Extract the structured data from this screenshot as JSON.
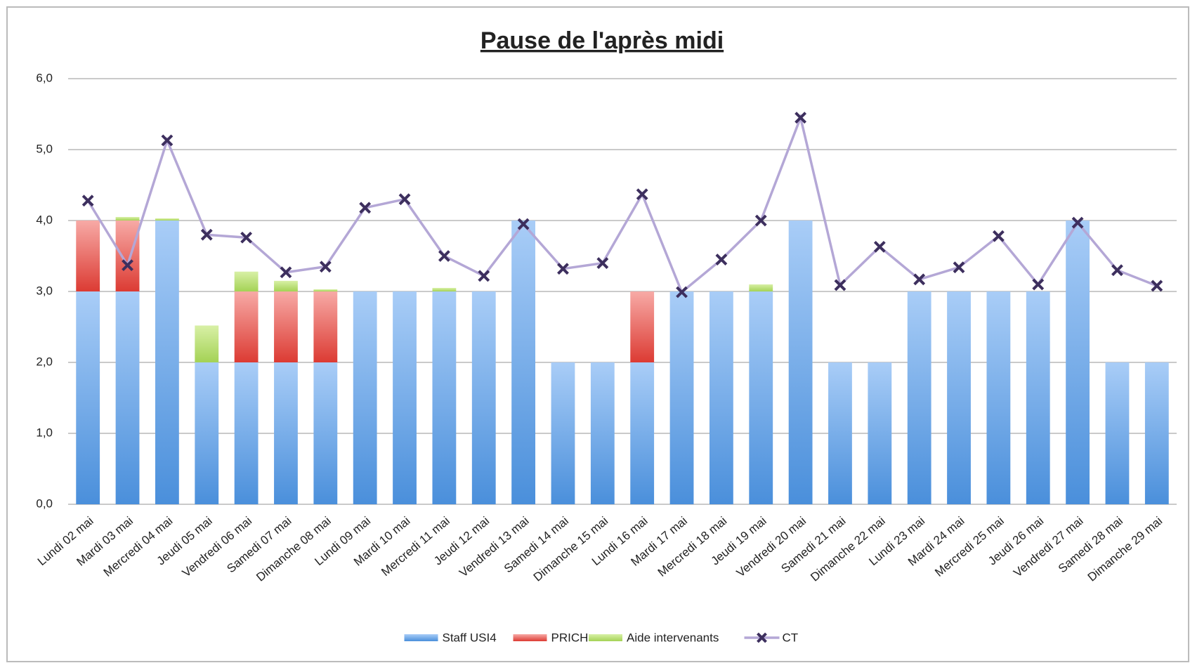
{
  "chart_data": {
    "type": "stacked_bar_line",
    "title": "Pause de l'après midi",
    "categories": [
      "Lundi 02 mai",
      "Mardi 03 mai",
      "Mercredi 04 mai",
      "Jeudi 05 mai",
      "Vendredi 06 mai",
      "Samedi 07 mai",
      "Dimanche 08 mai",
      "Lundi 09 mai",
      "Mardi 10 mai",
      "Mercredi 11 mai",
      "Jeudi 12 mai",
      "Vendredi 13 mai",
      "Samedi 14 mai",
      "Dimanche 15 mai",
      "Lundi 16 mai",
      "Mardi 17 mai",
      "Mercredi 18 mai",
      "Jeudi 19 mai",
      "Vendredi 20 mai",
      "Samedi 21 mai",
      "Dimanche 22 mai",
      "Lundi 23 mai",
      "Mardi 24 mai",
      "Mercredi 25 mai",
      "Jeudi 26 mai",
      "Vendredi 27 mai",
      "Samedi 28 mai",
      "Dimanche 29 mai"
    ],
    "series": [
      {
        "name": "Staff USI4",
        "color": "#5b9bd5",
        "kind": "bar",
        "values": [
          3,
          3,
          4,
          2,
          2,
          2,
          2,
          3,
          3,
          3,
          3,
          4,
          2,
          2,
          2,
          3,
          3,
          3,
          4,
          2,
          2,
          3,
          3,
          3,
          3,
          4,
          2,
          2
        ]
      },
      {
        "name": "PRICH",
        "color": "#e8504a",
        "kind": "bar",
        "values": [
          1,
          1,
          0,
          0,
          1,
          1,
          1,
          0,
          0,
          0,
          0,
          0,
          0,
          0,
          1,
          0,
          0,
          0,
          0,
          0,
          0,
          0,
          0,
          0,
          0,
          0,
          0,
          0
        ]
      },
      {
        "name": "Aide intervenants",
        "color": "#b5dc6a",
        "kind": "bar",
        "values": [
          0,
          0.05,
          0.03,
          0.52,
          0.28,
          0.15,
          0.03,
          0,
          0,
          0.05,
          0,
          0,
          0,
          0,
          0,
          0,
          0,
          0.1,
          0,
          0,
          0,
          0,
          0,
          0,
          0,
          0,
          0,
          0
        ]
      },
      {
        "name": "CT",
        "color": "#b4a7d6",
        "kind": "line",
        "values": [
          4.28,
          3.37,
          5.13,
          3.8,
          3.76,
          3.27,
          3.35,
          4.18,
          4.3,
          3.5,
          3.22,
          3.95,
          3.32,
          3.4,
          4.37,
          2.99,
          3.45,
          4.0,
          5.45,
          3.09,
          3.63,
          3.17,
          3.34,
          3.78,
          3.1,
          3.97,
          3.3,
          3.08
        ]
      }
    ],
    "ylim": [
      0,
      6
    ],
    "yticks": [
      {
        "value": 0,
        "label": "0,0"
      },
      {
        "value": 1,
        "label": "1,0"
      },
      {
        "value": 2,
        "label": "2,0"
      },
      {
        "value": 3,
        "label": "3,0"
      },
      {
        "value": 4,
        "label": "4,0"
      },
      {
        "value": 5,
        "label": "5,0"
      },
      {
        "value": 6,
        "label": "6,0"
      }
    ],
    "grid": true,
    "legend": "bottom"
  }
}
